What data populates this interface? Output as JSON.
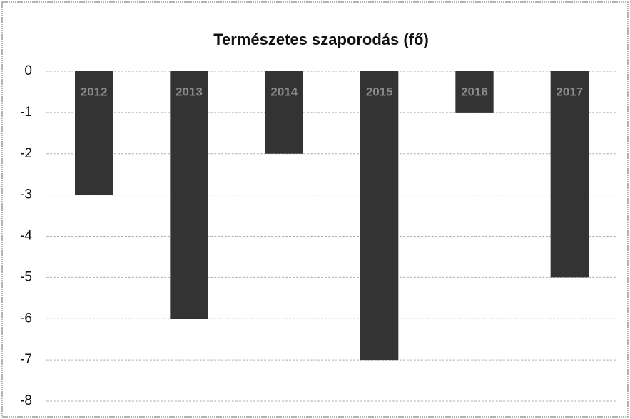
{
  "chart_data": {
    "type": "bar",
    "title": "Természetes szaporodás (fő)",
    "categories": [
      "2012",
      "2013",
      "2014",
      "2015",
      "2016",
      "2017"
    ],
    "values": [
      -3,
      -6,
      -2,
      -7,
      -1,
      -5
    ],
    "color": "#333333",
    "ylim": [
      -8,
      0
    ],
    "yticks": [
      0,
      -1,
      -2,
      -3,
      -4,
      -5,
      -6,
      -7,
      -8
    ],
    "grid": true
  }
}
